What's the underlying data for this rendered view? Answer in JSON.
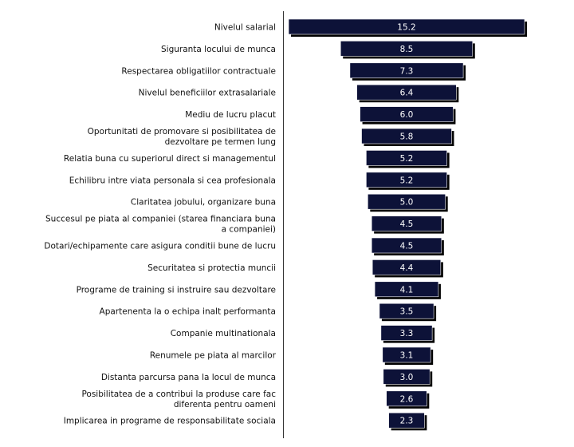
{
  "chart_data": {
    "type": "bar",
    "orientation": "horizontal",
    "layout": "centered",
    "categories": [
      [
        "Nivelul salarial"
      ],
      [
        "Siguranta locului de munca"
      ],
      [
        "Respectarea obligatiilor contractuale"
      ],
      [
        "Nivelul beneficiilor extrasalariale"
      ],
      [
        "Mediu de lucru placut"
      ],
      [
        "Oportunitati de promovare si posibilitatea de",
        "dezvoltare pe termen lung"
      ],
      [
        "Relatia buna cu superiorul direct si managementul"
      ],
      [
        "Echilibru intre viata personala si cea profesionala"
      ],
      [
        "Claritatea jobului, organizare buna"
      ],
      [
        "Succesul pe piata al companiei (starea financiara buna",
        "a companiei)"
      ],
      [
        "Dotari/echipamente care asigura conditii bune de lucru"
      ],
      [
        "Securitatea si protectia muncii"
      ],
      [
        "Programe de training si instruire sau dezvoltare"
      ],
      [
        "Apartenenta la o echipa inalt performanta"
      ],
      [
        "Companie multinationala"
      ],
      [
        "Renumele pe piata al marcilor"
      ],
      [
        "Distanta parcursa pana la locul de munca"
      ],
      [
        "Posibilitatea de a contribui la produse care fac",
        "diferenta pentru oameni"
      ],
      [
        "Implicarea in programe de responsabilitate sociala"
      ]
    ],
    "values": [
      15.2,
      8.5,
      7.3,
      6.4,
      6.0,
      5.8,
      5.2,
      5.2,
      5.0,
      4.5,
      4.5,
      4.4,
      4.1,
      3.5,
      3.3,
      3.1,
      3.0,
      2.6,
      2.3
    ],
    "value_labels": [
      "15.2",
      "8.5",
      "7.3",
      "6.4",
      "6.0",
      "5.8",
      "5.2",
      "5.2",
      "5.0",
      "4.5",
      "4.5",
      "4.4",
      "4.1",
      "3.5",
      "3.3",
      "3.1",
      "3.0",
      "2.6",
      "2.3"
    ],
    "bar_color": "#0d1238",
    "shadow_color": "#000000",
    "value_label_color": "#ffffff",
    "axis_line_color": "#333333",
    "title": "",
    "xlabel": "",
    "ylabel": "",
    "grid": false,
    "legend": "none"
  }
}
